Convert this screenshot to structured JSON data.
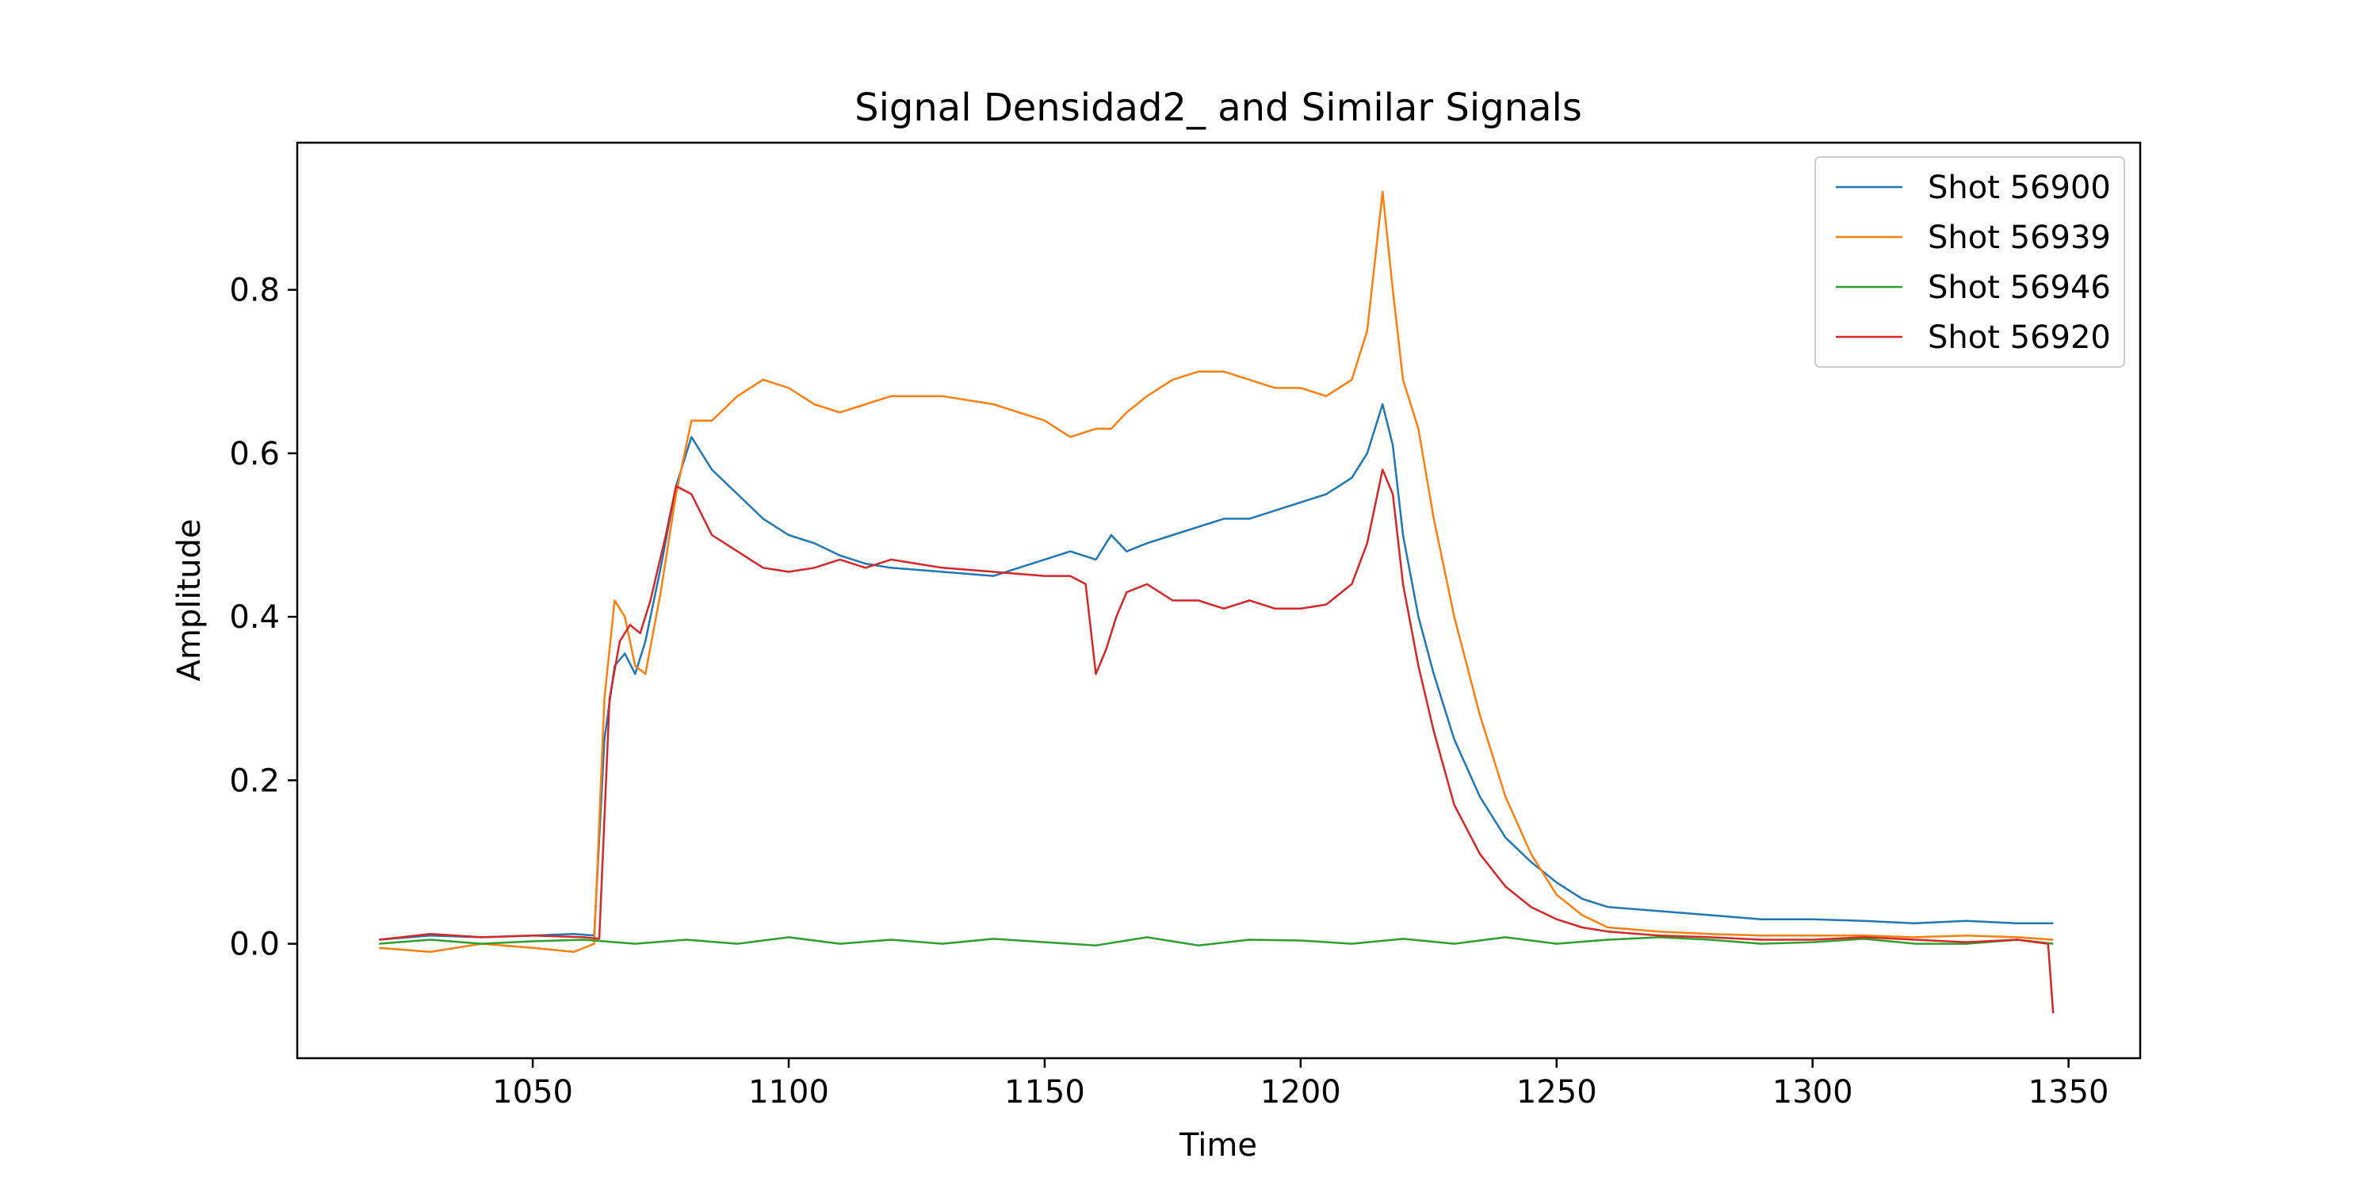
{
  "chart_data": {
    "type": "line",
    "title": "Signal Densidad2_ and Similar Signals",
    "xlabel": "Time",
    "ylabel": "Amplitude",
    "xlim": [
      1004,
      1364
    ],
    "ylim": [
      -0.14,
      0.98
    ],
    "xticks": [
      1050,
      1100,
      1150,
      1200,
      1250,
      1300,
      1350
    ],
    "yticks": [
      0.0,
      0.2,
      0.4,
      0.6,
      0.8
    ],
    "ytick_labels": [
      "0.0",
      "0.2",
      "0.4",
      "0.6",
      "0.8"
    ],
    "grid": false,
    "legend_position": "top-right",
    "series": [
      {
        "name": "Shot 56900",
        "color": "#1f77b4",
        "x": [
          1020,
          1030,
          1040,
          1050,
          1058,
          1062,
          1064,
          1066,
          1068,
          1070,
          1072,
          1075,
          1078,
          1081,
          1085,
          1090,
          1095,
          1100,
          1105,
          1110,
          1115,
          1120,
          1130,
          1140,
          1150,
          1155,
          1160,
          1163,
          1166,
          1170,
          1175,
          1180,
          1185,
          1190,
          1195,
          1200,
          1205,
          1210,
          1213,
          1216,
          1218,
          1220,
          1223,
          1226,
          1230,
          1235,
          1240,
          1245,
          1250,
          1255,
          1260,
          1270,
          1280,
          1290,
          1300,
          1310,
          1320,
          1330,
          1340,
          1347
        ],
        "y": [
          0.005,
          0.01,
          0.008,
          0.01,
          0.012,
          0.01,
          0.25,
          0.34,
          0.355,
          0.33,
          0.37,
          0.46,
          0.56,
          0.62,
          0.58,
          0.55,
          0.52,
          0.5,
          0.49,
          0.475,
          0.465,
          0.46,
          0.455,
          0.45,
          0.47,
          0.48,
          0.47,
          0.5,
          0.48,
          0.49,
          0.5,
          0.51,
          0.52,
          0.52,
          0.53,
          0.54,
          0.55,
          0.57,
          0.6,
          0.66,
          0.61,
          0.5,
          0.4,
          0.33,
          0.25,
          0.18,
          0.13,
          0.1,
          0.075,
          0.055,
          0.045,
          0.04,
          0.035,
          0.03,
          0.03,
          0.028,
          0.025,
          0.028,
          0.025,
          0.025
        ]
      },
      {
        "name": "Shot 56939",
        "color": "#ff7f0e",
        "x": [
          1020,
          1030,
          1040,
          1050,
          1058,
          1062,
          1064,
          1066,
          1068,
          1070,
          1072,
          1075,
          1078,
          1081,
          1085,
          1090,
          1095,
          1100,
          1105,
          1110,
          1115,
          1120,
          1130,
          1140,
          1150,
          1155,
          1160,
          1163,
          1166,
          1170,
          1175,
          1180,
          1185,
          1190,
          1195,
          1200,
          1205,
          1210,
          1213,
          1216,
          1218,
          1220,
          1223,
          1226,
          1230,
          1235,
          1240,
          1245,
          1250,
          1255,
          1260,
          1270,
          1280,
          1290,
          1300,
          1310,
          1320,
          1330,
          1340,
          1347
        ],
        "y": [
          -0.005,
          -0.01,
          0.0,
          -0.005,
          -0.01,
          0.0,
          0.3,
          0.42,
          0.4,
          0.34,
          0.33,
          0.43,
          0.55,
          0.64,
          0.64,
          0.67,
          0.69,
          0.68,
          0.66,
          0.65,
          0.66,
          0.67,
          0.67,
          0.66,
          0.64,
          0.62,
          0.63,
          0.63,
          0.65,
          0.67,
          0.69,
          0.7,
          0.7,
          0.69,
          0.68,
          0.68,
          0.67,
          0.69,
          0.75,
          0.92,
          0.8,
          0.69,
          0.63,
          0.52,
          0.4,
          0.28,
          0.18,
          0.11,
          0.06,
          0.035,
          0.02,
          0.015,
          0.012,
          0.01,
          0.01,
          0.01,
          0.008,
          0.01,
          0.008,
          0.005
        ]
      },
      {
        "name": "Shot 56946",
        "color": "#2ca02c",
        "x": [
          1020,
          1030,
          1040,
          1050,
          1060,
          1070,
          1080,
          1090,
          1100,
          1110,
          1120,
          1130,
          1140,
          1150,
          1160,
          1170,
          1180,
          1190,
          1200,
          1210,
          1220,
          1230,
          1240,
          1250,
          1260,
          1270,
          1280,
          1290,
          1300,
          1310,
          1320,
          1330,
          1340,
          1347
        ],
        "y": [
          0.0,
          0.005,
          0.0,
          0.003,
          0.005,
          0.0,
          0.005,
          0.0,
          0.008,
          0.0,
          0.005,
          0.0,
          0.006,
          0.002,
          -0.002,
          0.008,
          -0.002,
          0.005,
          0.004,
          0.0,
          0.006,
          0.0,
          0.008,
          0.0,
          0.005,
          0.008,
          0.005,
          0.0,
          0.002,
          0.006,
          0.0,
          0.0,
          0.005,
          0.0
        ]
      },
      {
        "name": "Shot 56920",
        "color": "#d62728",
        "x": [
          1020,
          1030,
          1040,
          1050,
          1060,
          1063,
          1065,
          1067,
          1069,
          1071,
          1073,
          1076,
          1078,
          1081,
          1085,
          1090,
          1095,
          1100,
          1105,
          1110,
          1115,
          1120,
          1130,
          1140,
          1150,
          1155,
          1158,
          1160,
          1162,
          1164,
          1166,
          1170,
          1175,
          1180,
          1185,
          1190,
          1195,
          1200,
          1205,
          1210,
          1213,
          1216,
          1218,
          1220,
          1223,
          1226,
          1230,
          1235,
          1240,
          1245,
          1250,
          1255,
          1260,
          1270,
          1280,
          1290,
          1300,
          1310,
          1320,
          1330,
          1340,
          1346,
          1347
        ],
        "y": [
          0.005,
          0.012,
          0.008,
          0.01,
          0.008,
          0.006,
          0.3,
          0.37,
          0.39,
          0.38,
          0.42,
          0.5,
          0.56,
          0.55,
          0.5,
          0.48,
          0.46,
          0.455,
          0.46,
          0.47,
          0.46,
          0.47,
          0.46,
          0.455,
          0.45,
          0.45,
          0.44,
          0.33,
          0.36,
          0.4,
          0.43,
          0.44,
          0.42,
          0.42,
          0.41,
          0.42,
          0.41,
          0.41,
          0.415,
          0.44,
          0.49,
          0.58,
          0.55,
          0.44,
          0.34,
          0.26,
          0.17,
          0.11,
          0.07,
          0.045,
          0.03,
          0.02,
          0.015,
          0.01,
          0.008,
          0.005,
          0.005,
          0.008,
          0.005,
          0.002,
          0.005,
          0.0,
          -0.085
        ]
      }
    ]
  }
}
